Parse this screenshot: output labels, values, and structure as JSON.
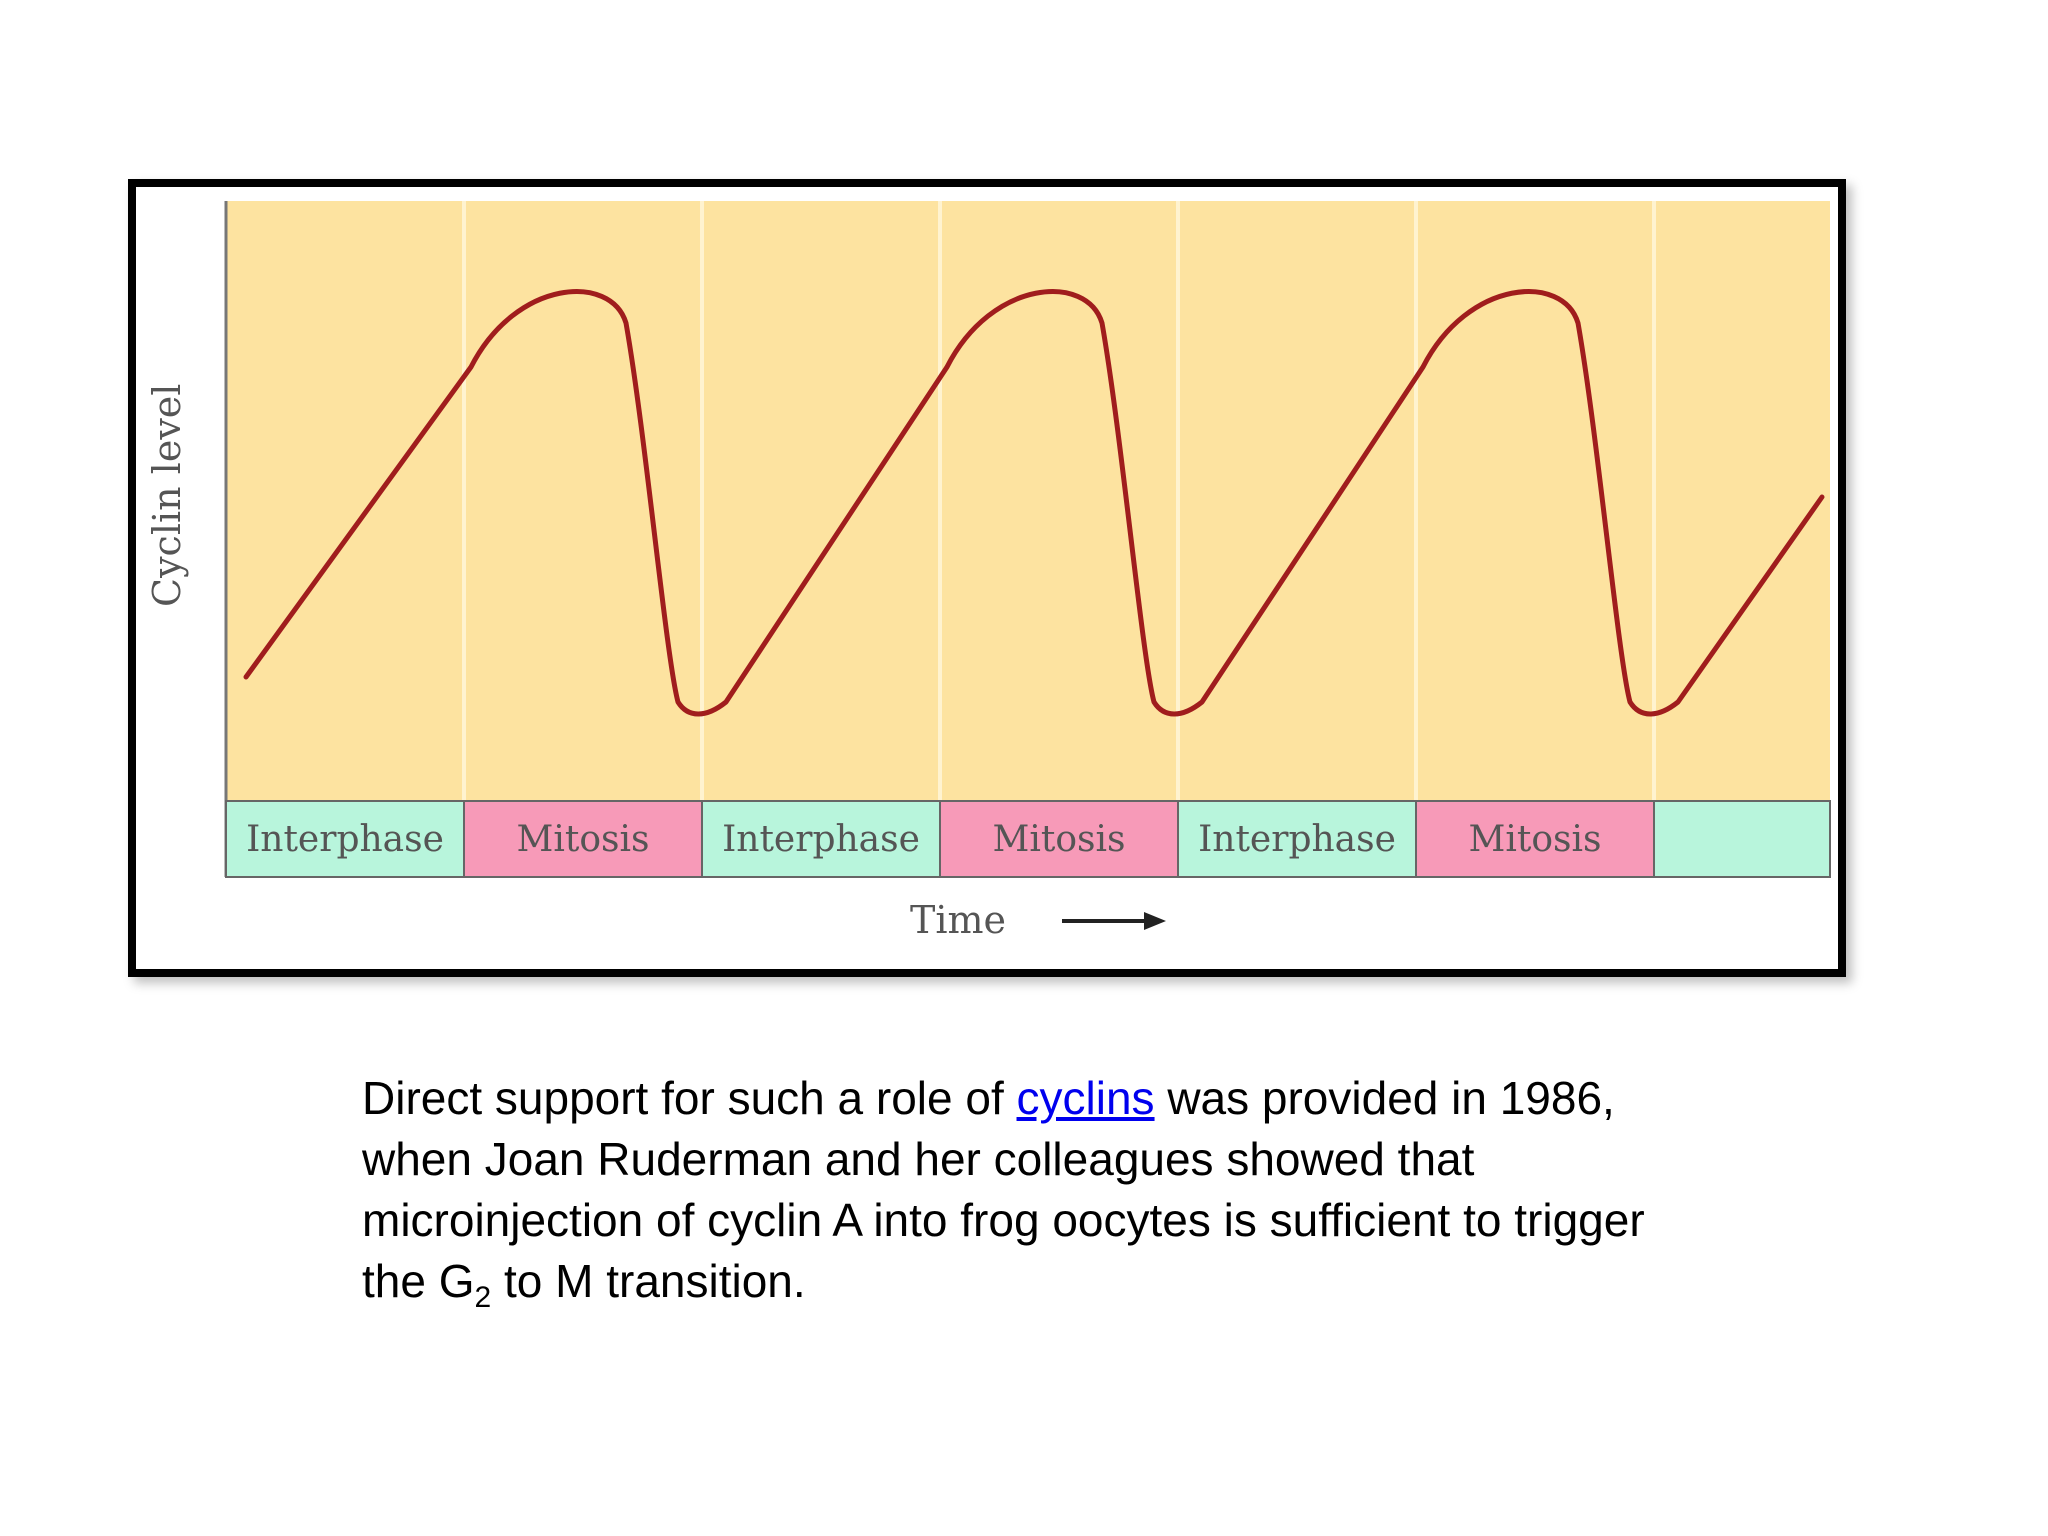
{
  "figure": {
    "y_axis_label": "Cyclin level",
    "x_axis_label": "Time",
    "phases": [
      {
        "label": "Interphase",
        "type": "interphase"
      },
      {
        "label": "Mitosis",
        "type": "mitosis"
      },
      {
        "label": "Interphase",
        "type": "interphase"
      },
      {
        "label": "Mitosis",
        "type": "mitosis"
      },
      {
        "label": "Interphase",
        "type": "interphase"
      },
      {
        "label": "Mitosis",
        "type": "mitosis"
      },
      {
        "label": "",
        "type": "interphase"
      }
    ],
    "colors": {
      "plot_background": "#fde3a0",
      "interphase": "#b8f5dc",
      "mitosis": "#f79ab8",
      "curve": "#a01d1d"
    }
  },
  "caption": {
    "part1": "Direct support for such a role of ",
    "link": "cyclins",
    "part2": " was provided in 1986, when Joan Ruderman and her colleagues showed that microinjection of cyclin A into frog oocytes is sufficient to trigger the G",
    "subscript": "2",
    "part3": " to M transition."
  }
}
